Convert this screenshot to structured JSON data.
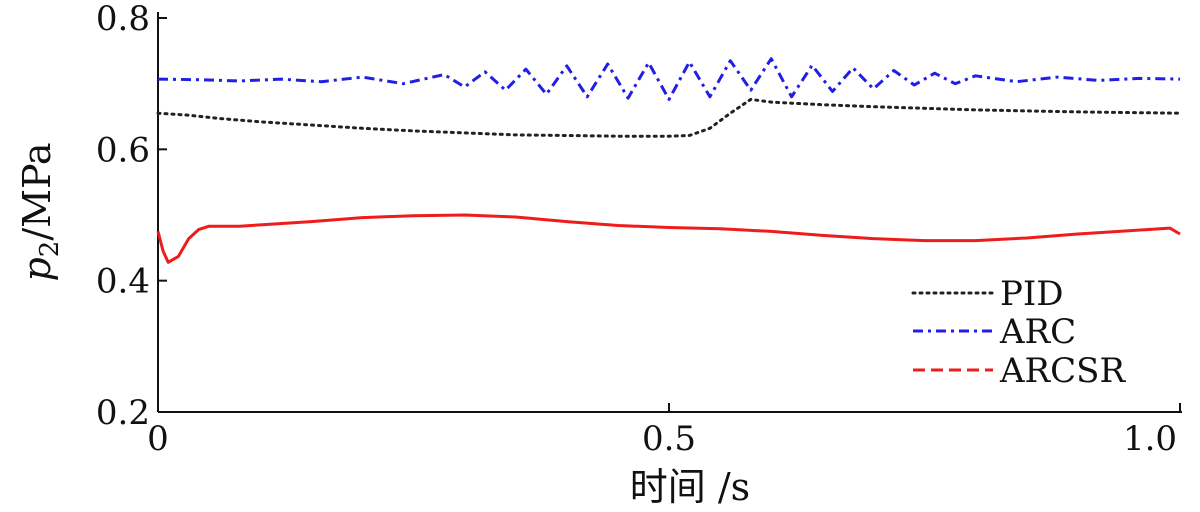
{
  "chart_data": {
    "type": "line",
    "xlabel": "时间 /s",
    "ylabel_var": "p",
    "ylabel_sub": "2",
    "ylabel_unit": "/MPa",
    "xlim": [
      0,
      1.0
    ],
    "ylim": [
      0.2,
      0.8
    ],
    "xticks": [
      0,
      0.5,
      1.0
    ],
    "xtick_labels": [
      "0",
      "0.5",
      "1.0"
    ],
    "yticks": [
      0.2,
      0.4,
      0.6,
      0.8
    ],
    "ytick_labels": [
      "0.2",
      "0.4",
      "0.6",
      "0.8"
    ],
    "legend_position": "bottom-right",
    "series": [
      {
        "name": "PID",
        "color": "#222222",
        "style": "dotted",
        "x": [
          0,
          0.03,
          0.06,
          0.1,
          0.15,
          0.2,
          0.25,
          0.3,
          0.35,
          0.4,
          0.45,
          0.5,
          0.52,
          0.54,
          0.56,
          0.58,
          0.6,
          0.65,
          0.7,
          0.8,
          0.9,
          1.0
        ],
        "y": [
          0.655,
          0.652,
          0.647,
          0.642,
          0.637,
          0.632,
          0.628,
          0.625,
          0.622,
          0.621,
          0.62,
          0.62,
          0.621,
          0.632,
          0.655,
          0.676,
          0.672,
          0.668,
          0.665,
          0.66,
          0.657,
          0.655
        ]
      },
      {
        "name": "ARC",
        "color": "#1f1fe6",
        "style": "dashdot",
        "x": [
          0,
          0.04,
          0.08,
          0.12,
          0.16,
          0.2,
          0.24,
          0.28,
          0.3,
          0.32,
          0.34,
          0.36,
          0.38,
          0.4,
          0.42,
          0.44,
          0.46,
          0.48,
          0.5,
          0.52,
          0.54,
          0.56,
          0.58,
          0.6,
          0.62,
          0.64,
          0.66,
          0.68,
          0.7,
          0.72,
          0.74,
          0.76,
          0.78,
          0.8,
          0.84,
          0.88,
          0.92,
          0.96,
          1.0
        ],
        "y": [
          0.707,
          0.706,
          0.704,
          0.707,
          0.703,
          0.71,
          0.7,
          0.714,
          0.695,
          0.718,
          0.69,
          0.722,
          0.684,
          0.727,
          0.68,
          0.73,
          0.678,
          0.732,
          0.676,
          0.733,
          0.68,
          0.735,
          0.69,
          0.738,
          0.68,
          0.728,
          0.688,
          0.724,
          0.692,
          0.72,
          0.698,
          0.716,
          0.7,
          0.712,
          0.703,
          0.71,
          0.705,
          0.708,
          0.707
        ]
      },
      {
        "name": "ARCSR",
        "color": "#ee1c1c",
        "style": "solid",
        "x": [
          0,
          0.005,
          0.01,
          0.02,
          0.03,
          0.04,
          0.05,
          0.08,
          0.1,
          0.15,
          0.2,
          0.25,
          0.3,
          0.35,
          0.4,
          0.45,
          0.5,
          0.55,
          0.6,
          0.65,
          0.7,
          0.75,
          0.8,
          0.85,
          0.9,
          0.95,
          0.99,
          1.0
        ],
        "y": [
          0.475,
          0.445,
          0.428,
          0.437,
          0.464,
          0.478,
          0.483,
          0.483,
          0.485,
          0.49,
          0.496,
          0.499,
          0.5,
          0.497,
          0.49,
          0.484,
          0.481,
          0.479,
          0.475,
          0.469,
          0.464,
          0.461,
          0.461,
          0.465,
          0.471,
          0.476,
          0.48,
          0.471
        ]
      }
    ]
  }
}
